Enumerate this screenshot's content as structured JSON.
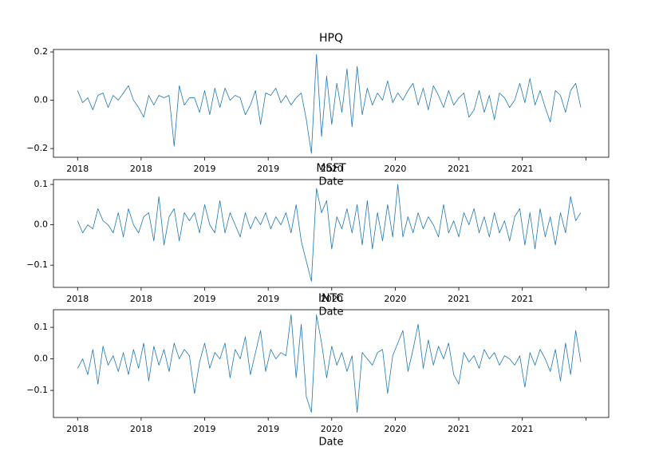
{
  "chart_data": [
    {
      "type": "line",
      "title": "HPQ",
      "xlabel": "Date",
      "x": [
        2018,
        2018.04,
        2018.08,
        2018.12,
        2018.16,
        2018.2,
        2018.24,
        2018.28,
        2018.32,
        2018.36,
        2018.4,
        2018.44,
        2018.48,
        2018.52,
        2018.56,
        2018.6,
        2018.64,
        2018.68,
        2018.72,
        2018.76,
        2018.8,
        2018.84,
        2018.88,
        2018.92,
        2018.96,
        2019,
        2019.04,
        2019.08,
        2019.12,
        2019.16,
        2019.2,
        2019.24,
        2019.28,
        2019.32,
        2019.36,
        2019.4,
        2019.44,
        2019.48,
        2019.52,
        2019.56,
        2019.6,
        2019.64,
        2019.68,
        2019.72,
        2019.76,
        2019.8,
        2019.84,
        2019.88,
        2019.92,
        2019.96,
        2020,
        2020.04,
        2020.08,
        2020.12,
        2020.16,
        2020.2,
        2020.24,
        2020.28,
        2020.32,
        2020.36,
        2020.4,
        2020.44,
        2020.48,
        2020.52,
        2020.56,
        2020.6,
        2020.64,
        2020.68,
        2020.72,
        2020.76,
        2020.8,
        2020.84,
        2020.88,
        2020.92,
        2020.96,
        2021,
        2021.04,
        2021.08,
        2021.12,
        2021.16,
        2021.2,
        2021.24,
        2021.28,
        2021.32,
        2021.36,
        2021.4,
        2021.44,
        2021.48,
        2021.52,
        2021.56,
        2021.6,
        2021.64,
        2021.68,
        2021.72,
        2021.76,
        2021.8,
        2021.84,
        2021.88,
        2021.92,
        2021.96
      ],
      "series": [
        {
          "color": "#1f77b4",
          "values": [
            0.04,
            -0.01,
            0.01,
            -0.04,
            0.02,
            0.03,
            -0.03,
            0.02,
            0.0,
            0.03,
            0.06,
            0.0,
            -0.03,
            -0.07,
            0.02,
            -0.02,
            0.02,
            0.01,
            0.02,
            -0.19,
            0.06,
            -0.02,
            0.01,
            0.01,
            -0.05,
            0.04,
            -0.06,
            0.05,
            -0.03,
            0.05,
            0.0,
            0.02,
            0.01,
            -0.06,
            -0.02,
            0.04,
            -0.1,
            0.03,
            0.02,
            0.05,
            -0.01,
            0.02,
            -0.02,
            0.01,
            0.03,
            -0.08,
            -0.22,
            0.19,
            -0.15,
            0.1,
            -0.1,
            0.07,
            -0.05,
            0.13,
            -0.11,
            0.14,
            -0.06,
            0.05,
            -0.02,
            0.03,
            0.0,
            0.08,
            -0.01,
            0.03,
            0.0,
            0.04,
            0.07,
            -0.02,
            0.05,
            -0.04,
            0.06,
            0.02,
            -0.03,
            0.04,
            -0.02,
            0.01,
            0.03,
            -0.07,
            -0.04,
            0.04,
            -0.05,
            0.02,
            -0.08,
            0.03,
            0.01,
            -0.03,
            0.0,
            0.07,
            -0.01,
            0.09,
            -0.02,
            0.04,
            -0.03,
            -0.09,
            0.04,
            0.02,
            -0.05,
            0.04,
            0.07,
            -0.03
          ]
        }
      ],
      "xlim": [
        2017.81,
        2022.18
      ],
      "xticks": [
        2018,
        {
          "value": 2018.5,
          "label": "2018"
        },
        2019,
        {
          "value": 2019.5,
          "label": "2019"
        },
        2020,
        {
          "value": 2020.5,
          "label": "2020"
        },
        2021,
        {
          "value": 2021.5,
          "label": "2021"
        },
        {
          "value": 2022,
          "label": null
        }
      ],
      "ylim": [
        -0.236,
        0.21
      ],
      "yticks": [
        {
          "value": -0.2,
          "label": "−0.2"
        },
        {
          "value": 0,
          "label": "0.0"
        },
        0.2
      ]
    },
    {
      "type": "line",
      "title": "MSFT",
      "xlabel": "Date",
      "x": [
        2018,
        2018.04,
        2018.08,
        2018.12,
        2018.16,
        2018.2,
        2018.24,
        2018.28,
        2018.32,
        2018.36,
        2018.4,
        2018.44,
        2018.48,
        2018.52,
        2018.56,
        2018.6,
        2018.64,
        2018.68,
        2018.72,
        2018.76,
        2018.8,
        2018.84,
        2018.88,
        2018.92,
        2018.96,
        2019,
        2019.04,
        2019.08,
        2019.12,
        2019.16,
        2019.2,
        2019.24,
        2019.28,
        2019.32,
        2019.36,
        2019.4,
        2019.44,
        2019.48,
        2019.52,
        2019.56,
        2019.6,
        2019.64,
        2019.68,
        2019.72,
        2019.76,
        2019.8,
        2019.84,
        2019.88,
        2019.92,
        2019.96,
        2020,
        2020.04,
        2020.08,
        2020.12,
        2020.16,
        2020.2,
        2020.24,
        2020.28,
        2020.32,
        2020.36,
        2020.4,
        2020.44,
        2020.48,
        2020.52,
        2020.56,
        2020.6,
        2020.64,
        2020.68,
        2020.72,
        2020.76,
        2020.8,
        2020.84,
        2020.88,
        2020.92,
        2020.96,
        2021,
        2021.04,
        2021.08,
        2021.12,
        2021.16,
        2021.2,
        2021.24,
        2021.28,
        2021.32,
        2021.36,
        2021.4,
        2021.44,
        2021.48,
        2021.52,
        2021.56,
        2021.6,
        2021.64,
        2021.68,
        2021.72,
        2021.76,
        2021.8,
        2021.84,
        2021.88,
        2021.92,
        2021.96
      ],
      "series": [
        {
          "color": "#1f77b4",
          "values": [
            0.01,
            -0.02,
            0.0,
            -0.01,
            0.04,
            0.01,
            0.0,
            -0.02,
            0.03,
            -0.03,
            0.04,
            0.0,
            -0.02,
            0.02,
            0.03,
            -0.04,
            0.07,
            -0.05,
            0.02,
            0.04,
            -0.04,
            0.03,
            0.01,
            0.03,
            -0.02,
            0.05,
            0.0,
            -0.02,
            0.06,
            -0.02,
            0.03,
            0.0,
            -0.03,
            0.03,
            -0.01,
            0.02,
            0.0,
            0.03,
            -0.01,
            0.02,
            0.0,
            0.03,
            -0.02,
            0.05,
            -0.04,
            -0.09,
            -0.14,
            0.09,
            0.03,
            0.06,
            -0.06,
            0.02,
            -0.01,
            0.04,
            -0.02,
            0.05,
            -0.05,
            0.06,
            -0.06,
            0.03,
            -0.04,
            0.05,
            -0.03,
            0.1,
            -0.03,
            0.02,
            -0.02,
            0.03,
            -0.01,
            0.02,
            0.0,
            -0.03,
            0.05,
            -0.02,
            0.01,
            -0.03,
            0.03,
            0.0,
            0.04,
            -0.02,
            0.02,
            -0.03,
            0.03,
            -0.02,
            0.01,
            -0.04,
            0.02,
            0.04,
            -0.05,
            0.03,
            -0.06,
            0.04,
            -0.03,
            0.02,
            -0.05,
            0.03,
            -0.02,
            0.07,
            0.01,
            0.03
          ]
        }
      ],
      "xlim": [
        2017.81,
        2022.18
      ],
      "xticks": [
        2018,
        {
          "value": 2018.5,
          "label": "2018"
        },
        2019,
        {
          "value": 2019.5,
          "label": "2019"
        },
        2020,
        {
          "value": 2020.5,
          "label": "2020"
        },
        2021,
        {
          "value": 2021.5,
          "label": "2021"
        },
        {
          "value": 2022,
          "label": null
        }
      ],
      "ylim": [
        -0.155,
        0.112
      ],
      "yticks": [
        {
          "value": -0.1,
          "label": "−0.1"
        },
        {
          "value": 0,
          "label": "0.0"
        },
        0.1
      ]
    },
    {
      "type": "line",
      "title": "INTC",
      "xlabel": "Date",
      "x": [
        2018,
        2018.04,
        2018.08,
        2018.12,
        2018.16,
        2018.2,
        2018.24,
        2018.28,
        2018.32,
        2018.36,
        2018.4,
        2018.44,
        2018.48,
        2018.52,
        2018.56,
        2018.6,
        2018.64,
        2018.68,
        2018.72,
        2018.76,
        2018.8,
        2018.84,
        2018.88,
        2018.92,
        2018.96,
        2019,
        2019.04,
        2019.08,
        2019.12,
        2019.16,
        2019.2,
        2019.24,
        2019.28,
        2019.32,
        2019.36,
        2019.4,
        2019.44,
        2019.48,
        2019.52,
        2019.56,
        2019.6,
        2019.64,
        2019.68,
        2019.72,
        2019.76,
        2019.8,
        2019.84,
        2019.88,
        2019.92,
        2019.96,
        2020,
        2020.04,
        2020.08,
        2020.12,
        2020.16,
        2020.2,
        2020.24,
        2020.28,
        2020.32,
        2020.36,
        2020.4,
        2020.44,
        2020.48,
        2020.52,
        2020.56,
        2020.6,
        2020.64,
        2020.68,
        2020.72,
        2020.76,
        2020.8,
        2020.84,
        2020.88,
        2020.92,
        2020.96,
        2021,
        2021.04,
        2021.08,
        2021.12,
        2021.16,
        2021.2,
        2021.24,
        2021.28,
        2021.32,
        2021.36,
        2021.4,
        2021.44,
        2021.48,
        2021.52,
        2021.56,
        2021.6,
        2021.64,
        2021.68,
        2021.72,
        2021.76,
        2021.8,
        2021.84,
        2021.88,
        2021.92,
        2021.96
      ],
      "series": [
        {
          "color": "#1f77b4",
          "values": [
            -0.03,
            0.0,
            -0.05,
            0.03,
            -0.08,
            0.04,
            -0.02,
            0.01,
            -0.04,
            0.02,
            -0.05,
            0.03,
            -0.03,
            0.05,
            -0.07,
            0.04,
            -0.02,
            0.03,
            -0.04,
            0.05,
            0.0,
            0.03,
            0.01,
            -0.11,
            -0.01,
            0.05,
            -0.03,
            0.02,
            0.0,
            0.05,
            -0.06,
            0.03,
            0.0,
            0.07,
            -0.05,
            0.02,
            0.09,
            -0.04,
            0.03,
            0.0,
            0.02,
            0.01,
            0.14,
            -0.06,
            0.11,
            -0.12,
            -0.17,
            0.14,
            0.05,
            -0.06,
            0.04,
            -0.02,
            0.02,
            -0.04,
            0.01,
            -0.17,
            0.02,
            0.0,
            -0.02,
            0.02,
            0.03,
            -0.11,
            0.01,
            0.05,
            0.09,
            -0.04,
            0.03,
            0.11,
            -0.03,
            0.06,
            -0.02,
            0.04,
            0.0,
            0.05,
            -0.05,
            -0.08,
            0.02,
            -0.01,
            0.01,
            -0.03,
            0.03,
            0.0,
            0.02,
            -0.02,
            0.01,
            0.0,
            -0.02,
            0.01,
            -0.09,
            0.02,
            -0.02,
            0.03,
            0.0,
            -0.04,
            0.03,
            -0.07,
            0.05,
            -0.05,
            0.09,
            -0.01
          ]
        }
      ],
      "xlim": [
        2017.81,
        2022.18
      ],
      "xticks": [
        2018,
        {
          "value": 2018.5,
          "label": "2018"
        },
        2019,
        {
          "value": 2019.5,
          "label": "2019"
        },
        2020,
        {
          "value": 2020.5,
          "label": "2020"
        },
        2021,
        {
          "value": 2021.5,
          "label": "2021"
        },
        {
          "value": 2022,
          "label": null
        }
      ],
      "ylim": [
        -0.186,
        0.156
      ],
      "yticks": [
        {
          "value": -0.1,
          "label": "−0.1"
        },
        {
          "value": 0,
          "label": "0.0"
        },
        0.1
      ]
    }
  ]
}
